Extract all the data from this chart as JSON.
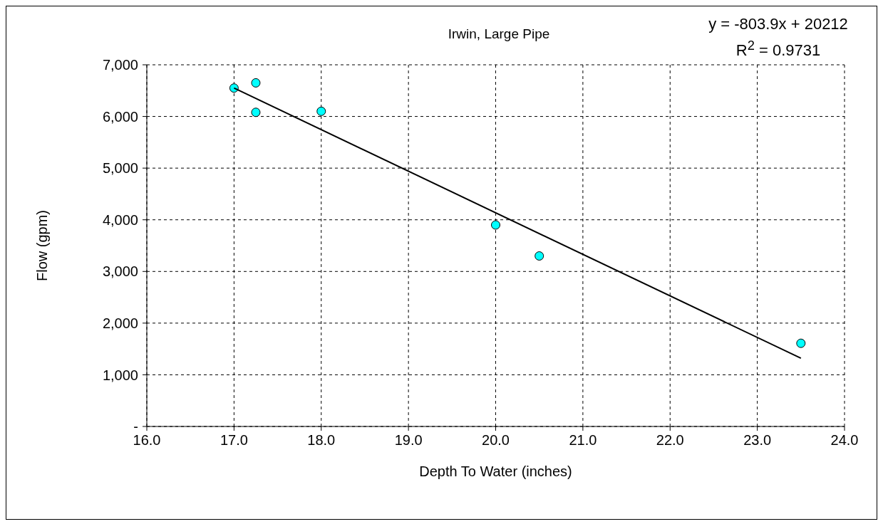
{
  "chart_data": {
    "type": "scatter",
    "title": "Irwin, Large Pipe",
    "xlabel": "Depth To Water (inches)",
    "ylabel": "Flow (gpm)",
    "annotations": [
      "y = -803.9x + 20212",
      "R$^{2}$ = 0.9731"
    ],
    "series": [
      {
        "color": "#00ffff",
        "x": [
          17.0,
          17.25,
          17.25,
          18.0,
          20.0,
          20.5,
          23.5
        ],
        "values": [
          6550,
          6650,
          6080,
          6100,
          3900,
          3300,
          1610
        ]
      },
      {
        "type": "line",
        "color": "#000000",
        "marker": "none",
        "x": [
          17.0,
          23.5
        ],
        "values": [
          6550,
          1320
        ]
      }
    ],
    "xlim": [
      16,
      24
    ],
    "xticks": [
      {
        "value": 16,
        "label": "16.0"
      },
      {
        "value": 17,
        "label": "17.0"
      },
      {
        "value": 18,
        "label": "18.0"
      },
      {
        "value": 19,
        "label": "19.0"
      },
      {
        "value": 20,
        "label": "20.0"
      },
      {
        "value": 21,
        "label": "21.0"
      },
      {
        "value": 22,
        "label": "22.0"
      },
      {
        "value": 23,
        "label": "23.0"
      },
      {
        "value": 24,
        "label": "24.0"
      }
    ],
    "ylim": [
      0,
      7000
    ],
    "yticks": [
      {
        "value": 0,
        "label": "-"
      },
      {
        "value": 1000,
        "label": "1,000"
      },
      {
        "value": 2000,
        "label": "2,000"
      },
      {
        "value": 3000,
        "label": "3,000"
      },
      {
        "value": 4000,
        "label": "4,000"
      },
      {
        "value": 5000,
        "label": "5,000"
      },
      {
        "value": 6000,
        "label": "6,000"
      },
      {
        "value": 7000,
        "label": "7,000"
      }
    ],
    "grid": true,
    "legend": false
  }
}
